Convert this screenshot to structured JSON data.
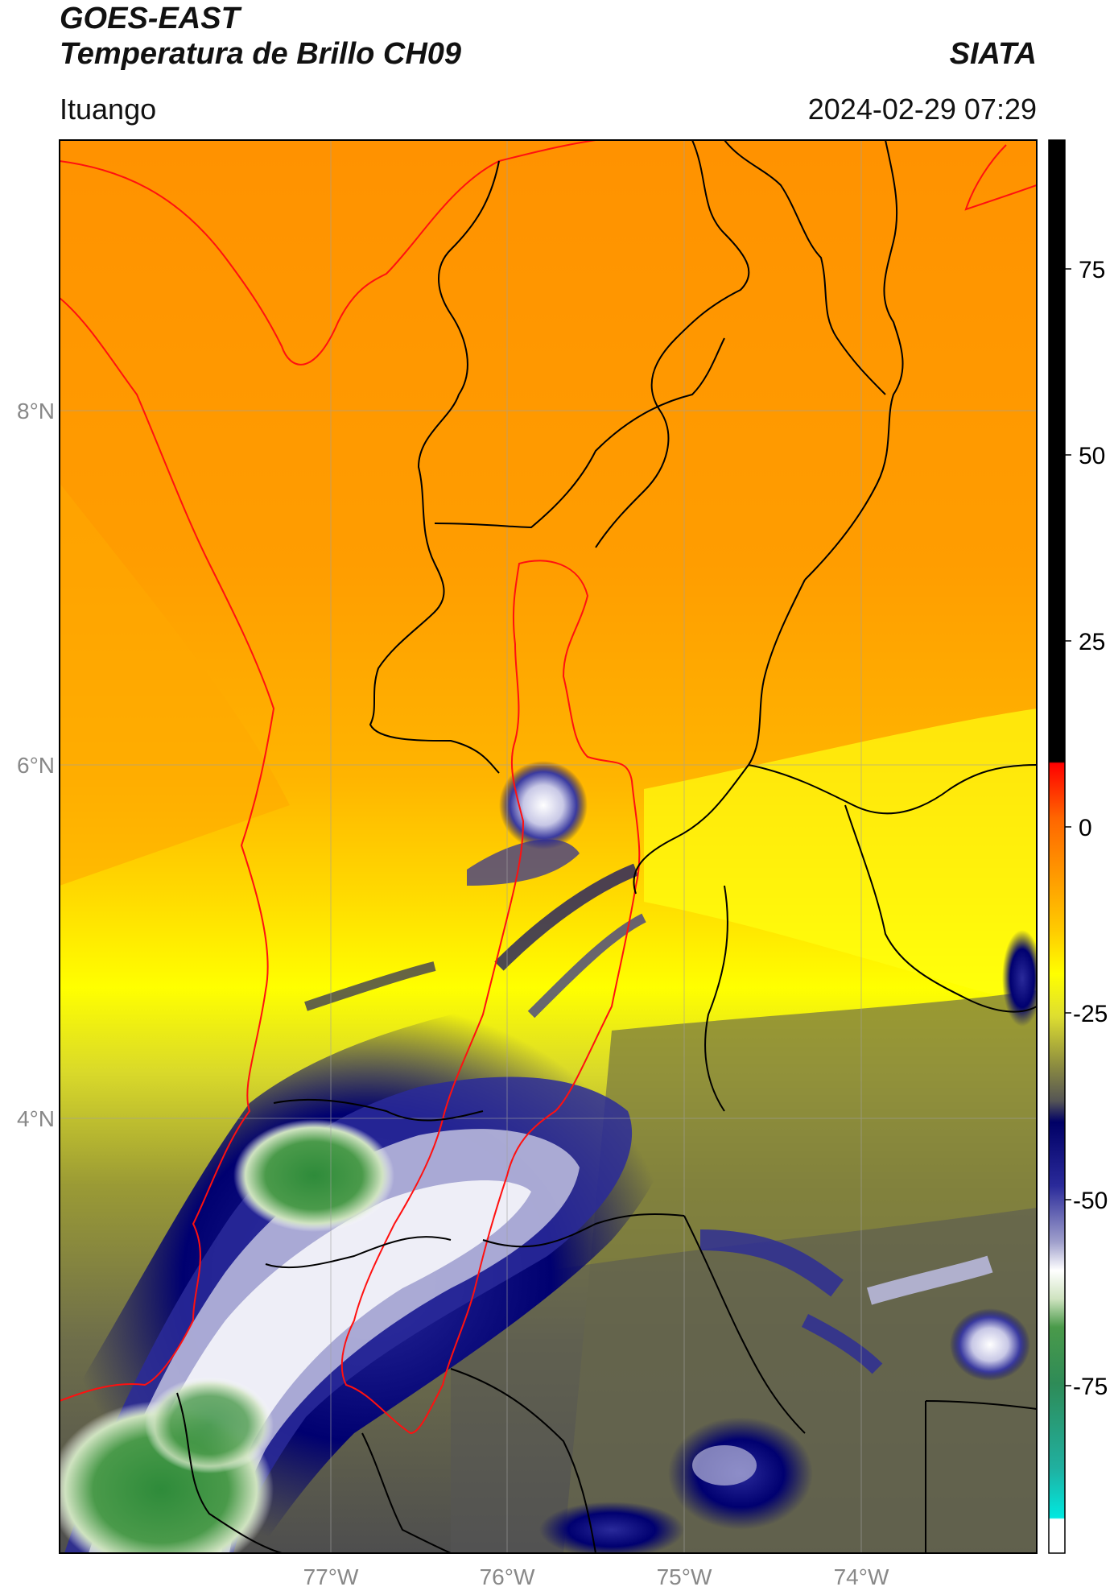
{
  "header": {
    "satellite": "GOES-EAST",
    "product": "Temperatura de Brillo CH09",
    "source": "SIATA",
    "region": "Ituango",
    "datetime": "2024-02-29 07:29"
  },
  "map": {
    "lat_labels": [
      "8°N",
      "6°N",
      "4°N"
    ],
    "lon_labels": [
      "77°W",
      "76°W",
      "75°W",
      "74°W"
    ]
  },
  "colorbar": {
    "ticks": [
      "75",
      "50",
      "25",
      "0",
      "-25",
      "-50",
      "-75"
    ],
    "colors": {
      "black": "#000000",
      "red": "#ff1a00",
      "orange": "#ff9900",
      "yellow": "#ffff00",
      "olive": "#8a8a3a",
      "gray": "#555555",
      "navy": "#000066",
      "white": "#ffffff",
      "green": "#2e8b3a",
      "cyan": "#19e0d0"
    }
  }
}
